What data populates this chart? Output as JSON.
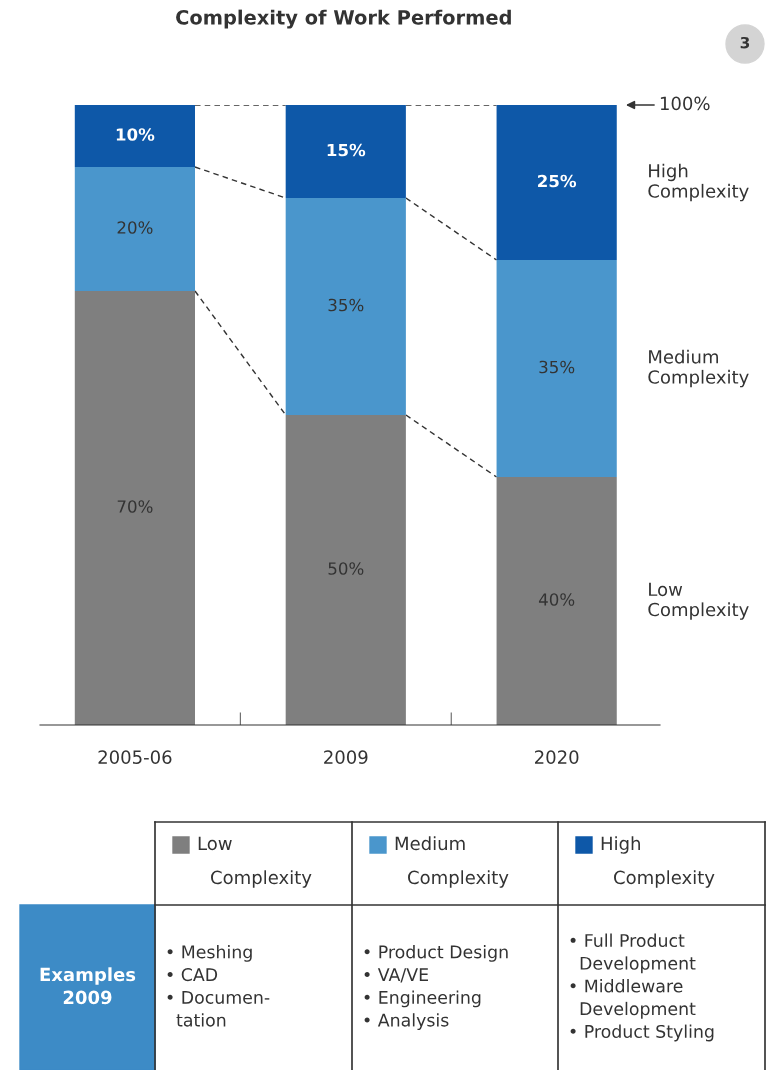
{
  "chart_data": {
    "type": "bar",
    "title": "Complexity of Work Performed",
    "stacked": true,
    "categories": [
      "2005-06",
      "2009",
      "2020"
    ],
    "series": [
      {
        "name": "Low Complexity",
        "color": "#7f7f7f",
        "values": [
          70,
          50,
          40
        ],
        "value_labels": [
          "70%",
          "50%",
          "40%"
        ]
      },
      {
        "name": "Medium Complexity",
        "color": "#4a96cc",
        "values": [
          20,
          35,
          35
        ],
        "value_labels": [
          "20%",
          "35%",
          "35%"
        ]
      },
      {
        "name": "High Complexity",
        "color": "#0e58a8",
        "values": [
          10,
          15,
          25
        ],
        "value_labels": [
          "10%",
          "15%",
          "25%"
        ]
      }
    ],
    "ylim": [
      0,
      100
    ],
    "tick_labels": "x",
    "legend": "bottom",
    "annotations": [
      "100%",
      "3",
      "Examples 2009",
      "• Meshing\n• CAD\n• Documen-\n  tation",
      "• Product Design\n• VA/VE\n• Engineering\n• Analysis",
      "• Full Product\n  Development\n• Middleware\n  Development\n• Product Styling"
    ]
  }
}
